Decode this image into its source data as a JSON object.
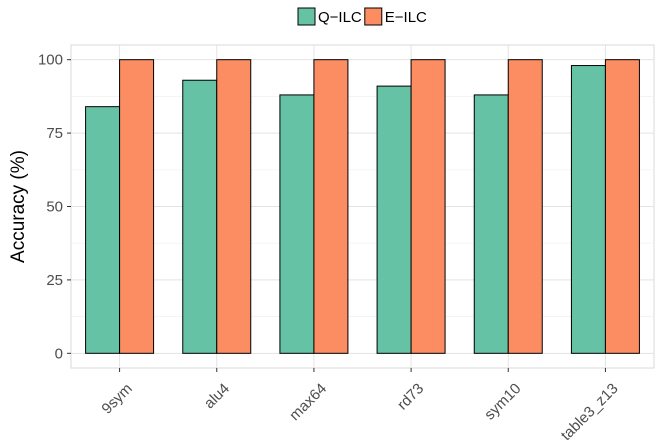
{
  "chart_data": {
    "type": "bar",
    "categories": [
      "9sym",
      "alu4",
      "max64",
      "rd73",
      "sym10",
      "table3_z13"
    ],
    "series": [
      {
        "name": "Q−ILC",
        "values": [
          84,
          93,
          88,
          91,
          88,
          98
        ],
        "color": "#66c2a5"
      },
      {
        "name": "E−ILC",
        "values": [
          100,
          100,
          100,
          100,
          100,
          100
        ],
        "color": "#fc8d62"
      }
    ],
    "title": "",
    "xlabel": "",
    "ylabel": "Accuracy (%)",
    "ylim": [
      -5,
      105
    ],
    "yticks": [
      0,
      25,
      50,
      75,
      100
    ],
    "grid": true,
    "legend_position": "top"
  }
}
